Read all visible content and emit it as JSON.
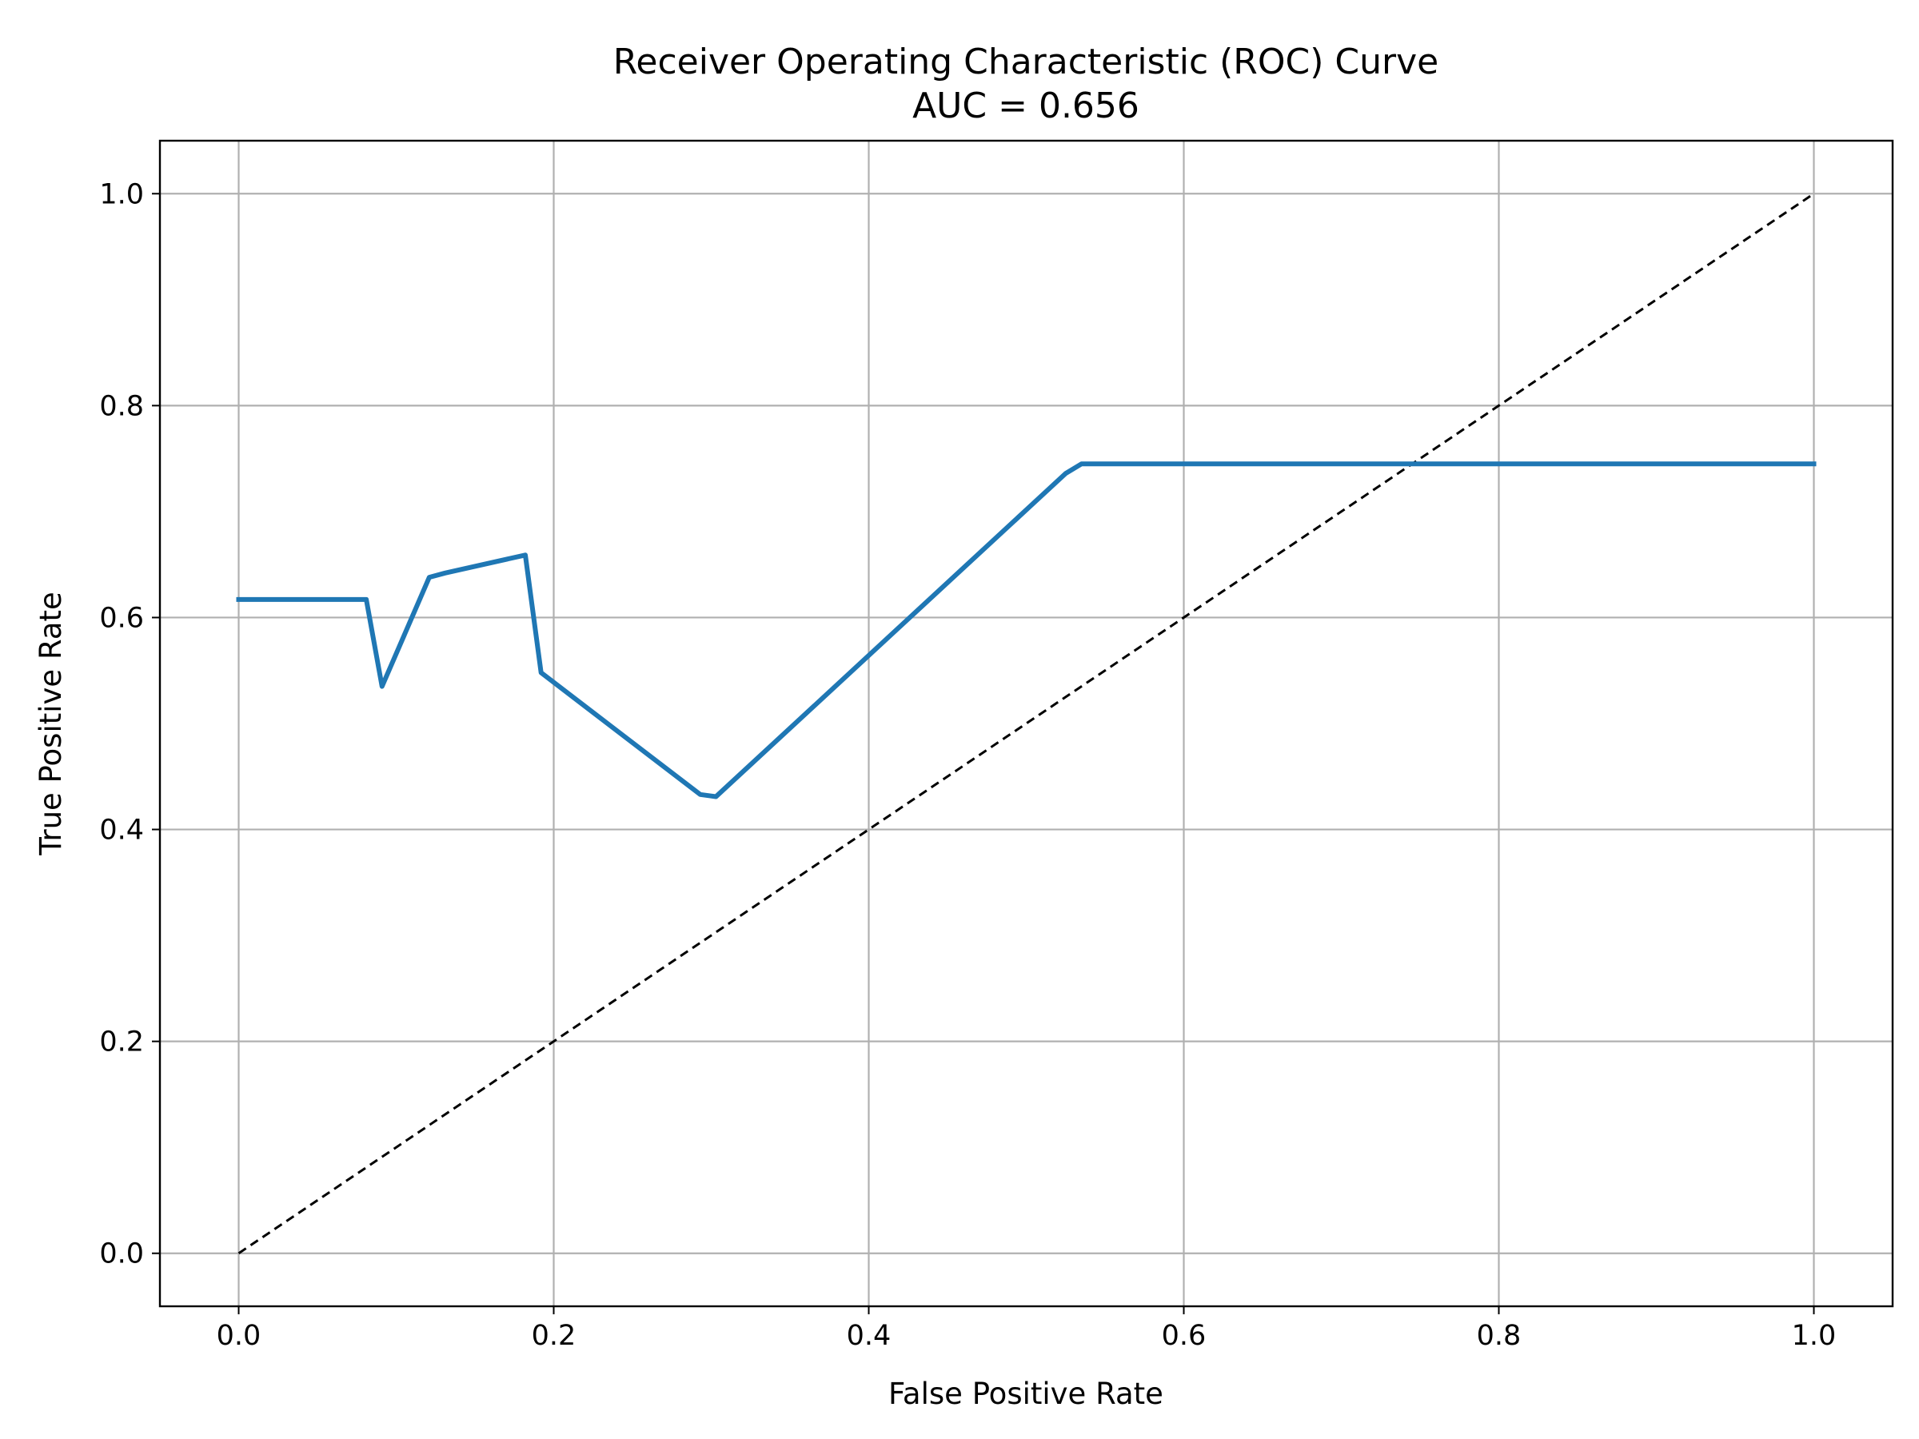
{
  "chart_data": {
    "type": "line",
    "title": "Receiver Operating Characteristic (ROC) Curve",
    "subtitle": "AUC = 0.656",
    "xlabel": "False Positive Rate",
    "ylabel": "True Positive Rate",
    "xlim": [
      -0.05,
      1.05
    ],
    "ylim": [
      -0.05,
      1.05
    ],
    "xticks": [
      "0.0",
      "0.2",
      "0.4",
      "0.6",
      "0.8",
      "1.0"
    ],
    "yticks": [
      "0.0",
      "0.2",
      "0.4",
      "0.6",
      "0.8",
      "1.0"
    ],
    "grid": true,
    "series": [
      {
        "color": "#1f77b4",
        "style": "solid",
        "x": [
          0.0,
          0.081,
          0.091,
          0.121,
          0.131,
          0.182,
          0.192,
          0.293,
          0.303,
          0.525,
          0.535,
          1.0
        ],
        "y": [
          0.617,
          0.617,
          0.535,
          0.638,
          0.642,
          0.659,
          0.548,
          0.433,
          0.431,
          0.736,
          0.745,
          0.745
        ]
      },
      {
        "color": "#000000",
        "style": "dashed",
        "x": [
          0.0,
          1.0
        ],
        "y": [
          0.0,
          1.0
        ]
      }
    ]
  }
}
